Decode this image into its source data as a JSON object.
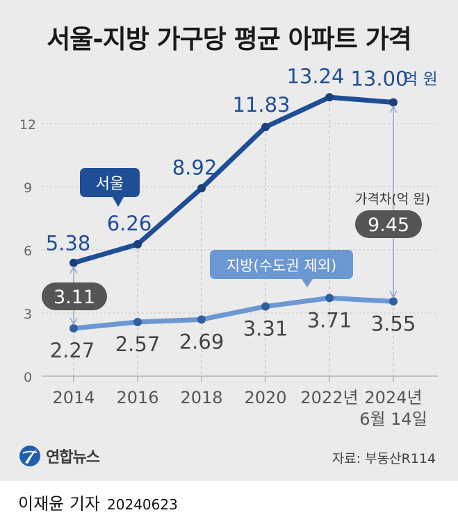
{
  "title": "서울-지방 가구당 평균 아파트 가격",
  "source": "자료: 부동산R114",
  "credit": {
    "author": "이재윤 기자",
    "date": "20240623"
  },
  "logo": {
    "text": "연합뉴스"
  },
  "colors": {
    "seoul": "#1f4e96",
    "region": "#6b97d2",
    "gray_box": "#555555",
    "grid": "#c8c8c8"
  },
  "chart_data": {
    "type": "line",
    "categories": [
      "2014",
      "2016",
      "2018",
      "2020",
      "2022년",
      "2024년"
    ],
    "last_category_note": "6월 14일",
    "ylim": [
      0,
      13.5
    ],
    "y_ticks": [
      "0",
      "3",
      "6",
      "9",
      "12"
    ],
    "series": [
      {
        "name": "서울",
        "values": [
          5.38,
          6.26,
          8.92,
          11.83,
          13.24,
          13.0
        ],
        "labels": [
          "5.38",
          "6.26",
          "8.92",
          "11.83",
          "13.24",
          "13.00"
        ],
        "unit_suffix": "억 원"
      },
      {
        "name": "지방(수도권 제외)",
        "values": [
          2.27,
          2.57,
          2.69,
          3.31,
          3.71,
          3.55
        ],
        "labels": [
          "2.27",
          "2.57",
          "2.69",
          "3.31",
          "3.71",
          "3.55"
        ]
      }
    ],
    "annotations": [
      {
        "text": "3.11",
        "at": "2014"
      },
      {
        "text": "9.45",
        "at": "2024년",
        "label": "가격차(억 원)"
      }
    ]
  }
}
